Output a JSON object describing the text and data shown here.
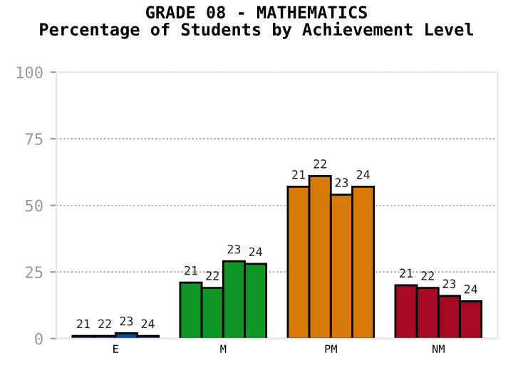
{
  "chart_data": {
    "type": "bar",
    "title": "GRADE 08 - MATHEMATICS\nPercentage of Students by Achievement Level",
    "categories": [
      "E",
      "M",
      "PM",
      "NM"
    ],
    "series": [
      {
        "name": "21",
        "colors": [
          "#0a4a96",
          "#0e9624",
          "#d87a08",
          "#a50a22"
        ],
        "values": [
          1,
          21,
          57,
          20
        ]
      },
      {
        "name": "22",
        "colors": [
          "#0a4a96",
          "#0e9624",
          "#d87a08",
          "#a50a22"
        ],
        "values": [
          1,
          19,
          61,
          19
        ]
      },
      {
        "name": "23",
        "colors": [
          "#0a4a96",
          "#0e9624",
          "#d87a08",
          "#a50a22"
        ],
        "values": [
          2,
          29,
          54,
          16
        ]
      },
      {
        "name": "24",
        "colors": [
          "#0a4a96",
          "#0e9624",
          "#d87a08",
          "#a50a22"
        ],
        "values": [
          1,
          28,
          57,
          14
        ]
      }
    ],
    "ylim": [
      0,
      100
    ],
    "yticks": [
      0,
      25,
      50,
      75,
      100
    ],
    "grid": "y",
    "legend": false
  }
}
